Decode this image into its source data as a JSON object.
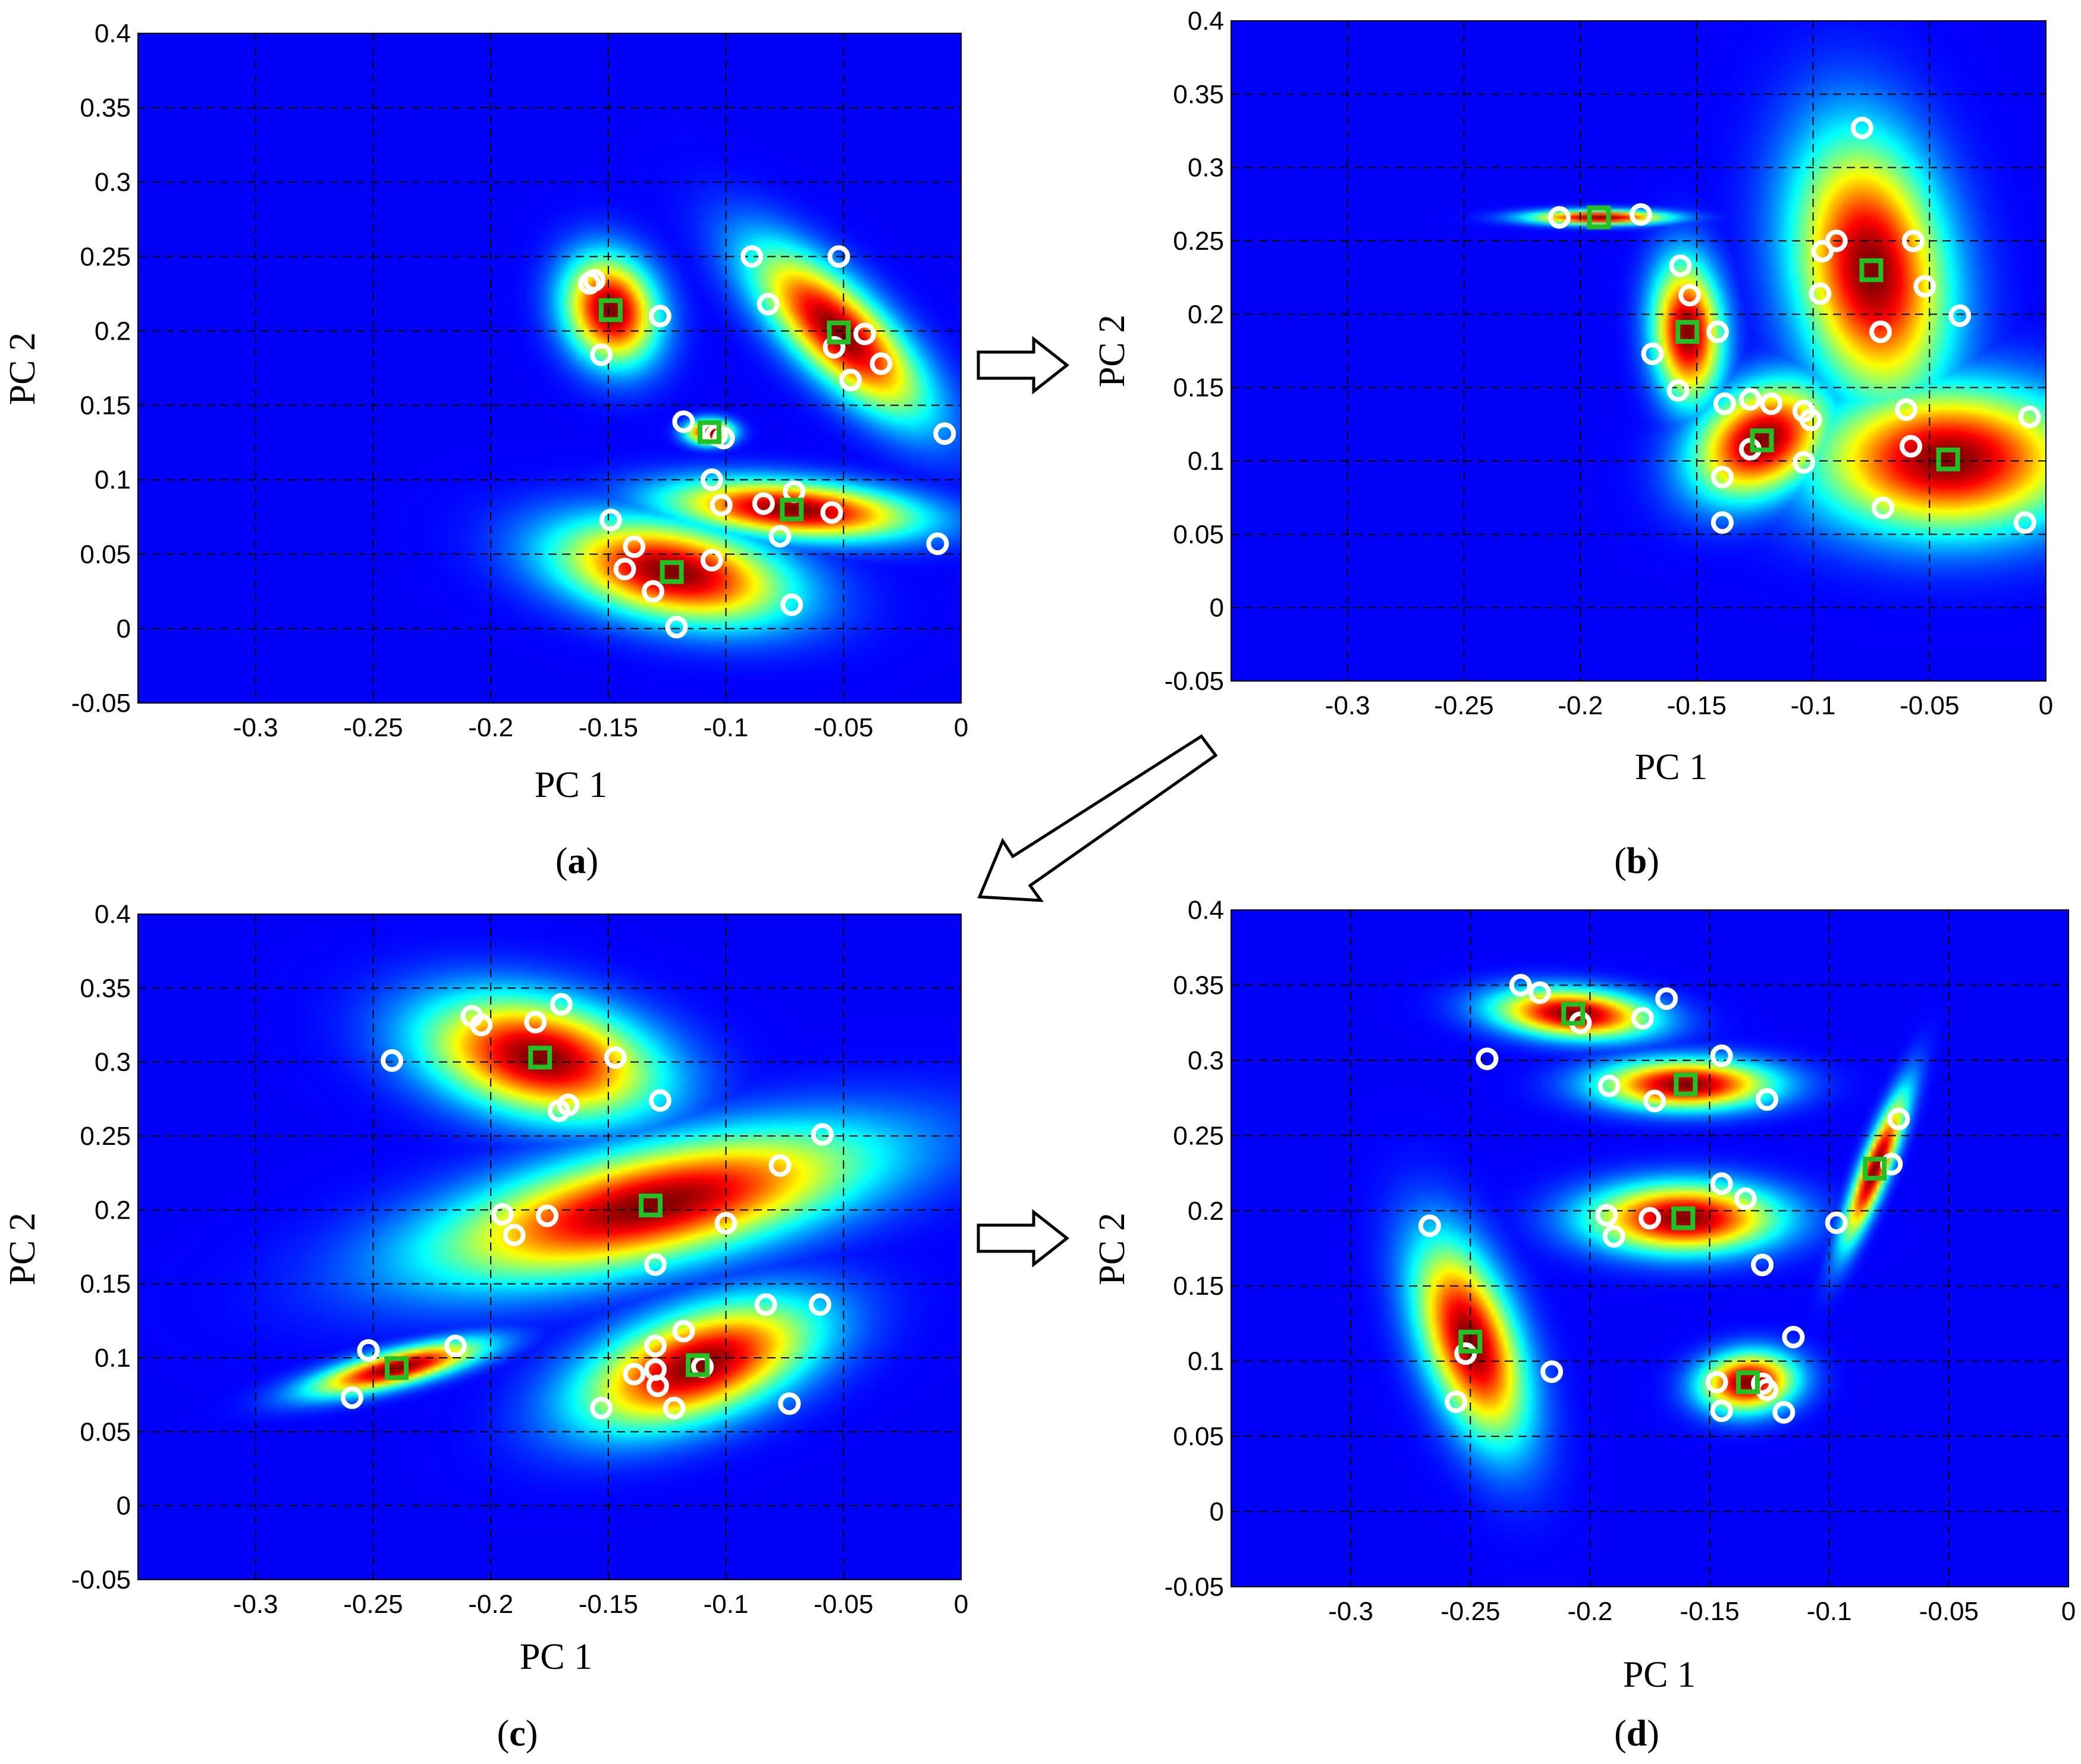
{
  "chart_data": [
    {
      "type": "scatter",
      "panel": "a",
      "caption_letter": "a",
      "xlabel": "PC 1",
      "ylabel": "PC 2",
      "xlim": [
        -0.35,
        0
      ],
      "ylim": [
        -0.05,
        0.4
      ],
      "xticks": [
        -0.3,
        -0.25,
        -0.2,
        -0.15,
        -0.1,
        -0.05,
        0
      ],
      "xtick_labels": [
        "-0.3",
        "-0.25",
        "-0.2",
        "-0.15",
        "-0.1",
        "-0.05",
        "0"
      ],
      "yticks": [
        -0.05,
        0,
        0.05,
        0.1,
        0.15,
        0.2,
        0.25,
        0.3,
        0.35,
        0.4
      ],
      "ytick_labels": [
        "-0.05",
        "0",
        "0.05",
        "0.1",
        "0.15",
        "0.2",
        "0.25",
        "0.3",
        "0.35",
        "0.4"
      ],
      "grid": true,
      "background_color": "#00008f",
      "clusters": [
        {
          "center": [
            -0.149,
            0.214
          ],
          "sx": 0.012,
          "sy": 0.022,
          "rho": -0.15
        },
        {
          "center": [
            -0.052,
            0.199
          ],
          "sx": 0.022,
          "sy": 0.034,
          "rho": -0.75
        },
        {
          "center": [
            -0.107,
            0.132
          ],
          "sx": 0.006,
          "sy": 0.005,
          "rho": 0.0
        },
        {
          "center": [
            -0.072,
            0.08
          ],
          "sx": 0.032,
          "sy": 0.012,
          "rho": -0.3
        },
        {
          "center": [
            -0.123,
            0.038
          ],
          "sx": 0.03,
          "sy": 0.021,
          "rho": -0.35
        }
      ],
      "centers": [
        [
          -0.149,
          0.214
        ],
        [
          -0.052,
          0.199
        ],
        [
          -0.107,
          0.132
        ],
        [
          -0.072,
          0.08
        ],
        [
          -0.123,
          0.038
        ]
      ],
      "points": [
        [
          -0.158,
          0.232
        ],
        [
          -0.156,
          0.234
        ],
        [
          -0.153,
          0.184
        ],
        [
          -0.128,
          0.21
        ],
        [
          -0.089,
          0.25
        ],
        [
          -0.052,
          0.25
        ],
        [
          -0.082,
          0.218
        ],
        [
          -0.041,
          0.198
        ],
        [
          -0.054,
          0.189
        ],
        [
          -0.047,
          0.167
        ],
        [
          -0.034,
          0.178
        ],
        [
          -0.007,
          0.131
        ],
        [
          -0.118,
          0.139
        ],
        [
          -0.106,
          0.132
        ],
        [
          -0.104,
          0.13
        ],
        [
          -0.101,
          0.128
        ],
        [
          -0.106,
          0.1
        ],
        [
          -0.102,
          0.083
        ],
        [
          -0.084,
          0.084
        ],
        [
          -0.071,
          0.092
        ],
        [
          -0.055,
          0.078
        ],
        [
          -0.077,
          0.062
        ],
        [
          -0.01,
          0.057
        ],
        [
          -0.149,
          0.073
        ],
        [
          -0.139,
          0.055
        ],
        [
          -0.143,
          0.04
        ],
        [
          -0.131,
          0.025
        ],
        [
          -0.121,
          0.001
        ],
        [
          -0.106,
          0.046
        ],
        [
          -0.072,
          0.016
        ]
      ]
    },
    {
      "type": "scatter",
      "panel": "b",
      "caption_letter": "b",
      "xlabel": "PC 1",
      "ylabel": "PC 2",
      "xlim": [
        -0.35,
        0
      ],
      "ylim": [
        -0.05,
        0.4
      ],
      "xticks": [
        -0.3,
        -0.25,
        -0.2,
        -0.15,
        -0.1,
        -0.05,
        0
      ],
      "xtick_labels": [
        "-0.3",
        "-0.25",
        "-0.2",
        "-0.15",
        "-0.1",
        "-0.05",
        "0"
      ],
      "yticks": [
        -0.05,
        0,
        0.05,
        0.1,
        0.15,
        0.2,
        0.25,
        0.3,
        0.35,
        0.4
      ],
      "ytick_labels": [
        "-0.05",
        "0",
        "0.05",
        "0.1",
        "0.15",
        "0.2",
        "0.25",
        "0.3",
        "0.35",
        "0.4"
      ],
      "grid": true,
      "background_color": "#00008f",
      "clusters": [
        {
          "center": [
            -0.192,
            0.266
          ],
          "sx": 0.018,
          "sy": 0.003,
          "rho": 0.0
        },
        {
          "center": [
            -0.154,
            0.188
          ],
          "sx": 0.009,
          "sy": 0.029,
          "rho": -0.1
        },
        {
          "center": [
            -0.075,
            0.23
          ],
          "sx": 0.02,
          "sy": 0.055,
          "rho": -0.2
        },
        {
          "center": [
            -0.122,
            0.114
          ],
          "sx": 0.018,
          "sy": 0.024,
          "rho": 0.3
        },
        {
          "center": [
            -0.042,
            0.101
          ],
          "sx": 0.035,
          "sy": 0.03,
          "rho": 0.0
        }
      ],
      "centers": [
        [
          -0.192,
          0.266
        ],
        [
          -0.154,
          0.188
        ],
        [
          -0.075,
          0.23
        ],
        [
          -0.122,
          0.114
        ],
        [
          -0.042,
          0.101
        ]
      ],
      "points": [
        [
          -0.209,
          0.266
        ],
        [
          -0.174,
          0.268
        ],
        [
          -0.157,
          0.233
        ],
        [
          -0.153,
          0.213
        ],
        [
          -0.141,
          0.188
        ],
        [
          -0.169,
          0.173
        ],
        [
          -0.158,
          0.148
        ],
        [
          -0.079,
          0.327
        ],
        [
          -0.09,
          0.25
        ],
        [
          -0.096,
          0.243
        ],
        [
          -0.057,
          0.25
        ],
        [
          -0.052,
          0.219
        ],
        [
          -0.097,
          0.214
        ],
        [
          -0.071,
          0.188
        ],
        [
          -0.037,
          0.199
        ],
        [
          -0.138,
          0.139
        ],
        [
          -0.127,
          0.142
        ],
        [
          -0.118,
          0.139
        ],
        [
          -0.104,
          0.134
        ],
        [
          -0.101,
          0.128
        ],
        [
          -0.127,
          0.108
        ],
        [
          -0.139,
          0.089
        ],
        [
          -0.104,
          0.099
        ],
        [
          -0.139,
          0.058
        ],
        [
          -0.06,
          0.135
        ],
        [
          -0.058,
          0.11
        ],
        [
          -0.007,
          0.13
        ],
        [
          -0.07,
          0.068
        ],
        [
          -0.009,
          0.058
        ]
      ]
    },
    {
      "type": "scatter",
      "panel": "c",
      "caption_letter": "c",
      "xlabel": "PC 1",
      "ylabel": "PC 2",
      "xlim": [
        -0.35,
        0
      ],
      "ylim": [
        -0.05,
        0.4
      ],
      "xticks": [
        -0.3,
        -0.25,
        -0.2,
        -0.15,
        -0.1,
        -0.05,
        0
      ],
      "xtick_labels": [
        "-0.3",
        "-0.25",
        "-0.2",
        "-0.15",
        "-0.1",
        "-0.05",
        "0"
      ],
      "yticks": [
        -0.05,
        0,
        0.05,
        0.1,
        0.15,
        0.2,
        0.25,
        0.3,
        0.35,
        0.4
      ],
      "ytick_labels": [
        "-0.05",
        "0",
        "0.05",
        "0.1",
        "0.15",
        "0.2",
        "0.25",
        "0.3",
        "0.35",
        "0.4"
      ],
      "grid": true,
      "background_color": "#00008f",
      "clusters": [
        {
          "center": [
            -0.179,
            0.303
          ],
          "sx": 0.03,
          "sy": 0.025,
          "rho": -0.3
        },
        {
          "center": [
            -0.132,
            0.203
          ],
          "sx": 0.055,
          "sy": 0.03,
          "rho": 0.6
        },
        {
          "center": [
            -0.24,
            0.093
          ],
          "sx": 0.022,
          "sy": 0.011,
          "rho": 0.75
        },
        {
          "center": [
            -0.112,
            0.095
          ],
          "sx": 0.03,
          "sy": 0.026,
          "rho": 0.5
        }
      ],
      "centers": [
        [
          -0.179,
          0.303
        ],
        [
          -0.132,
          0.203
        ],
        [
          -0.24,
          0.093
        ],
        [
          -0.112,
          0.095
        ]
      ],
      "points": [
        [
          -0.208,
          0.331
        ],
        [
          -0.204,
          0.325
        ],
        [
          -0.181,
          0.327
        ],
        [
          -0.17,
          0.339
        ],
        [
          -0.147,
          0.303
        ],
        [
          -0.242,
          0.301
        ],
        [
          -0.171,
          0.267
        ],
        [
          -0.167,
          0.271
        ],
        [
          -0.128,
          0.274
        ],
        [
          -0.059,
          0.251
        ],
        [
          -0.077,
          0.23
        ],
        [
          -0.195,
          0.197
        ],
        [
          -0.176,
          0.196
        ],
        [
          -0.19,
          0.183
        ],
        [
          -0.1,
          0.191
        ],
        [
          -0.13,
          0.163
        ],
        [
          -0.252,
          0.105
        ],
        [
          -0.215,
          0.108
        ],
        [
          -0.259,
          0.073
        ],
        [
          -0.118,
          0.118
        ],
        [
          -0.13,
          0.108
        ],
        [
          -0.139,
          0.089
        ],
        [
          -0.13,
          0.092
        ],
        [
          -0.129,
          0.081
        ],
        [
          -0.11,
          0.094
        ],
        [
          -0.122,
          0.066
        ],
        [
          -0.153,
          0.066
        ],
        [
          -0.083,
          0.136
        ],
        [
          -0.06,
          0.136
        ],
        [
          -0.073,
          0.069
        ]
      ]
    },
    {
      "type": "scatter",
      "panel": "d",
      "caption_letter": "d",
      "xlabel": "PC 1",
      "ylabel": "PC 2",
      "xlim": [
        -0.35,
        0
      ],
      "ylim": [
        -0.05,
        0.4
      ],
      "xticks": [
        -0.3,
        -0.25,
        -0.2,
        -0.15,
        -0.1,
        -0.05,
        0
      ],
      "xtick_labels": [
        "-0.3",
        "-0.25",
        "-0.2",
        "-0.15",
        "-0.1",
        "-0.05",
        "0"
      ],
      "yticks": [
        -0.05,
        0,
        0.05,
        0.1,
        0.15,
        0.2,
        0.25,
        0.3,
        0.35,
        0.4
      ],
      "ytick_labels": [
        "-0.05",
        "0",
        "0.05",
        "0.1",
        "0.15",
        "0.2",
        "0.25",
        "0.3",
        "0.35",
        "0.4"
      ],
      "grid": true,
      "background_color": "#00008f",
      "clusters": [
        {
          "center": [
            -0.207,
            0.331
          ],
          "sx": 0.02,
          "sy": 0.01,
          "rho": -0.2
        },
        {
          "center": [
            -0.16,
            0.284
          ],
          "sx": 0.022,
          "sy": 0.01,
          "rho": 0.0
        },
        {
          "center": [
            -0.081,
            0.228
          ],
          "sx": 0.008,
          "sy": 0.03,
          "rho": 0.88
        },
        {
          "center": [
            -0.161,
            0.195
          ],
          "sx": 0.024,
          "sy": 0.014,
          "rho": 0.0
        },
        {
          "center": [
            -0.25,
            0.113
          ],
          "sx": 0.014,
          "sy": 0.04,
          "rho": -0.5
        },
        {
          "center": [
            -0.134,
            0.086
          ],
          "sx": 0.012,
          "sy": 0.012,
          "rho": 0.1
        }
      ],
      "centers": [
        [
          -0.207,
          0.331
        ],
        [
          -0.16,
          0.284
        ],
        [
          -0.081,
          0.228
        ],
        [
          -0.161,
          0.195
        ],
        [
          -0.25,
          0.113
        ],
        [
          -0.134,
          0.086
        ]
      ],
      "points": [
        [
          -0.229,
          0.35
        ],
        [
          -0.221,
          0.345
        ],
        [
          -0.204,
          0.325
        ],
        [
          -0.178,
          0.328
        ],
        [
          -0.168,
          0.341
        ],
        [
          -0.243,
          0.301
        ],
        [
          -0.145,
          0.303
        ],
        [
          -0.192,
          0.283
        ],
        [
          -0.173,
          0.273
        ],
        [
          -0.126,
          0.274
        ],
        [
          -0.071,
          0.261
        ],
        [
          -0.074,
          0.231
        ],
        [
          -0.097,
          0.192
        ],
        [
          -0.193,
          0.197
        ],
        [
          -0.175,
          0.195
        ],
        [
          -0.19,
          0.183
        ],
        [
          -0.145,
          0.218
        ],
        [
          -0.135,
          0.208
        ],
        [
          -0.128,
          0.164
        ],
        [
          -0.267,
          0.19
        ],
        [
          -0.252,
          0.105
        ],
        [
          -0.216,
          0.093
        ],
        [
          -0.256,
          0.073
        ],
        [
          -0.115,
          0.116
        ],
        [
          -0.128,
          0.085
        ],
        [
          -0.147,
          0.086
        ],
        [
          -0.126,
          0.081
        ],
        [
          -0.145,
          0.067
        ],
        [
          -0.119,
          0.066
        ]
      ]
    }
  ]
}
